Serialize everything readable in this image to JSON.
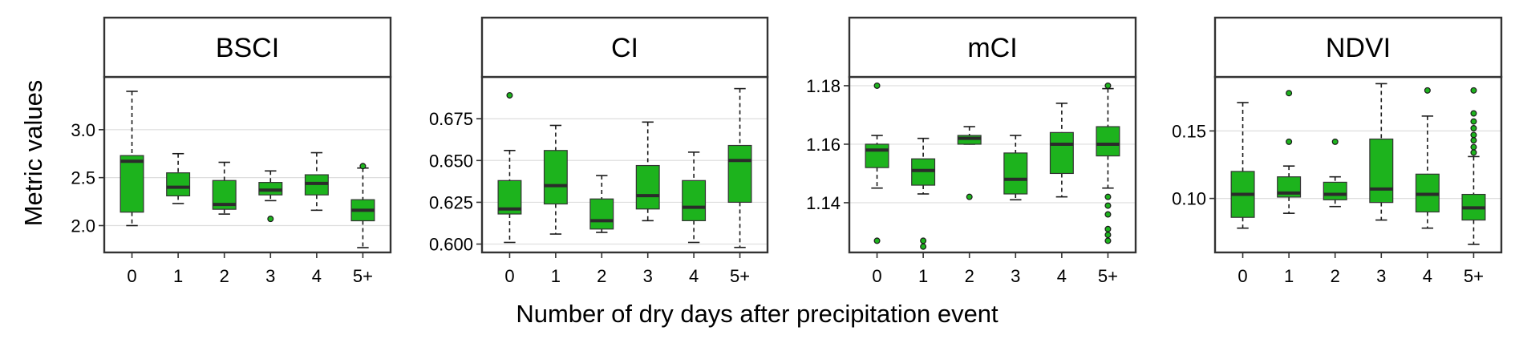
{
  "chart_data": {
    "type": "box",
    "xlabel": "Number of dry days after precipitation event",
    "ylabel": "Metric values",
    "categories": [
      "0",
      "1",
      "2",
      "3",
      "4",
      "5+"
    ],
    "box_fill": "#1db31d",
    "box_stroke": "#333333",
    "grid": true,
    "panels": [
      {
        "strip": "BSCI",
        "ylim": [
          1.72,
          3.55
        ],
        "yticks": [
          2.0,
          2.5,
          3.0
        ],
        "ytick_labels": [
          "2.0",
          "2.5",
          "3.0"
        ],
        "boxes": [
          {
            "whisker_low": 2.0,
            "q1": 2.14,
            "median": 2.67,
            "q3": 2.73,
            "whisker_high": 3.4,
            "outliers": []
          },
          {
            "whisker_low": 2.23,
            "q1": 2.31,
            "median": 2.4,
            "q3": 2.55,
            "whisker_high": 2.75,
            "outliers": []
          },
          {
            "whisker_low": 2.12,
            "q1": 2.17,
            "median": 2.22,
            "q3": 2.47,
            "whisker_high": 2.66,
            "outliers": []
          },
          {
            "whisker_low": 2.26,
            "q1": 2.32,
            "median": 2.37,
            "q3": 2.45,
            "whisker_high": 2.57,
            "outliers": [
              2.07
            ]
          },
          {
            "whisker_low": 2.16,
            "q1": 2.32,
            "median": 2.44,
            "q3": 2.53,
            "whisker_high": 2.76,
            "outliers": []
          },
          {
            "whisker_low": 1.77,
            "q1": 2.05,
            "median": 2.16,
            "q3": 2.27,
            "whisker_high": 2.6,
            "outliers": [
              2.62
            ]
          }
        ]
      },
      {
        "strip": "CI",
        "ylim": [
          0.595,
          0.7
        ],
        "yticks": [
          0.6,
          0.625,
          0.65,
          0.675
        ],
        "ytick_labels": [
          "0.600",
          "0.625",
          "0.650",
          "0.675"
        ],
        "boxes": [
          {
            "whisker_low": 0.601,
            "q1": 0.618,
            "median": 0.621,
            "q3": 0.638,
            "whisker_high": 0.656,
            "outliers": [
              0.689
            ]
          },
          {
            "whisker_low": 0.606,
            "q1": 0.624,
            "median": 0.635,
            "q3": 0.656,
            "whisker_high": 0.671,
            "outliers": []
          },
          {
            "whisker_low": 0.607,
            "q1": 0.609,
            "median": 0.614,
            "q3": 0.627,
            "whisker_high": 0.641,
            "outliers": []
          },
          {
            "whisker_low": 0.614,
            "q1": 0.621,
            "median": 0.629,
            "q3": 0.647,
            "whisker_high": 0.673,
            "outliers": []
          },
          {
            "whisker_low": 0.601,
            "q1": 0.614,
            "median": 0.622,
            "q3": 0.638,
            "whisker_high": 0.655,
            "outliers": []
          },
          {
            "whisker_low": 0.598,
            "q1": 0.625,
            "median": 0.65,
            "q3": 0.659,
            "whisker_high": 0.693,
            "outliers": []
          }
        ]
      },
      {
        "strip": "mCI",
        "ylim": [
          1.123,
          1.183
        ],
        "yticks": [
          1.14,
          1.16,
          1.18
        ],
        "ytick_labels": [
          "1.14",
          "1.16",
          "1.18"
        ],
        "boxes": [
          {
            "whisker_low": 1.145,
            "q1": 1.152,
            "median": 1.158,
            "q3": 1.16,
            "whisker_high": 1.163,
            "outliers": [
              1.18,
              1.127
            ]
          },
          {
            "whisker_low": 1.143,
            "q1": 1.146,
            "median": 1.151,
            "q3": 1.155,
            "whisker_high": 1.162,
            "outliers": [
              1.127,
              1.125
            ]
          },
          {
            "whisker_low": 1.16,
            "q1": 1.16,
            "median": 1.162,
            "q3": 1.163,
            "whisker_high": 1.166,
            "outliers": [
              1.142
            ]
          },
          {
            "whisker_low": 1.141,
            "q1": 1.143,
            "median": 1.148,
            "q3": 1.157,
            "whisker_high": 1.163,
            "outliers": []
          },
          {
            "whisker_low": 1.142,
            "q1": 1.15,
            "median": 1.16,
            "q3": 1.164,
            "whisker_high": 1.174,
            "outliers": []
          },
          {
            "whisker_low": 1.145,
            "q1": 1.156,
            "median": 1.16,
            "q3": 1.166,
            "whisker_high": 1.179,
            "outliers": [
              1.18,
              1.142,
              1.139,
              1.136,
              1.131,
              1.129,
              1.127
            ]
          }
        ]
      },
      {
        "strip": "NDVI",
        "ylim": [
          0.06,
          0.19
        ],
        "yticks": [
          0.1,
          0.15
        ],
        "ytick_labels": [
          "0.10",
          "0.15"
        ],
        "boxes": [
          {
            "whisker_low": 0.078,
            "q1": 0.086,
            "median": 0.103,
            "q3": 0.12,
            "whisker_high": 0.171,
            "outliers": []
          },
          {
            "whisker_low": 0.089,
            "q1": 0.101,
            "median": 0.104,
            "q3": 0.116,
            "whisker_high": 0.124,
            "outliers": [
              0.178,
              0.142
            ]
          },
          {
            "whisker_low": 0.094,
            "q1": 0.099,
            "median": 0.103,
            "q3": 0.112,
            "whisker_high": 0.116,
            "outliers": [
              0.142
            ]
          },
          {
            "whisker_low": 0.084,
            "q1": 0.097,
            "median": 0.107,
            "q3": 0.144,
            "whisker_high": 0.185,
            "outliers": []
          },
          {
            "whisker_low": 0.078,
            "q1": 0.09,
            "median": 0.103,
            "q3": 0.118,
            "whisker_high": 0.161,
            "outliers": [
              0.18
            ]
          },
          {
            "whisker_low": 0.066,
            "q1": 0.084,
            "median": 0.093,
            "q3": 0.103,
            "whisker_high": 0.131,
            "outliers": [
              0.18,
              0.163,
              0.157,
              0.152,
              0.147,
              0.143,
              0.138,
              0.134
            ]
          }
        ]
      }
    ]
  }
}
